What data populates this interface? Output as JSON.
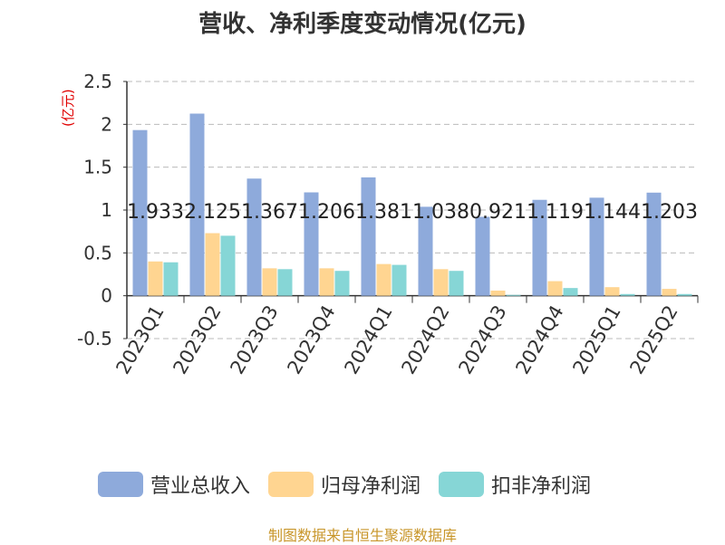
{
  "title": "营收、净利季度变动情况(亿元)",
  "unit_label": "(亿元)",
  "source": "制图数据来自恒生聚源数据库",
  "chart_data": {
    "type": "bar",
    "categories": [
      "2023Q1",
      "2023Q2",
      "2023Q3",
      "2023Q4",
      "2024Q1",
      "2024Q2",
      "2024Q3",
      "2024Q4",
      "2025Q1",
      "2025Q2"
    ],
    "ylim": [
      -0.5,
      2.5
    ],
    "yticks": [
      -0.5,
      0,
      0.5,
      1,
      1.5,
      2,
      2.5
    ],
    "ytick_labels": [
      "-0.5",
      "0",
      "0.5",
      "1",
      "1.5",
      "2",
      "2.5"
    ],
    "grid": true,
    "legend_position": "bottom",
    "series": [
      {
        "name": "营业总收入",
        "color": "#8eaadb",
        "values": [
          1.933,
          2.125,
          1.367,
          1.206,
          1.381,
          1.038,
          0.921,
          1.119,
          1.144,
          1.203
        ],
        "labels": [
          "1.933",
          "2.125",
          "1.367",
          "1.206",
          "1.381",
          "1.038",
          "0.921",
          "1.119",
          "1.144",
          "1.203"
        ]
      },
      {
        "name": "归母净利润",
        "color": "#ffd591",
        "values": [
          0.4,
          0.73,
          0.32,
          0.32,
          0.37,
          0.31,
          0.06,
          0.17,
          0.1,
          0.08
        ]
      },
      {
        "name": "扣非净利润",
        "color": "#86d6d6",
        "values": [
          0.39,
          0.7,
          0.31,
          0.29,
          0.36,
          0.29,
          0.01,
          0.09,
          0.02,
          0.02
        ]
      }
    ]
  }
}
